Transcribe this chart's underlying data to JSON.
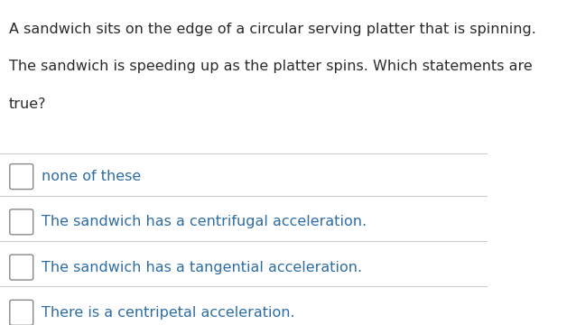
{
  "question_text_lines": [
    "A sandwich sits on the edge of a circular serving platter that is spinning.",
    "The sandwich is speeding up as the platter spins. Which statements are",
    "true?"
  ],
  "choices": [
    "none of these",
    "The sandwich has a centrifugal acceleration.",
    "The sandwich has a tangential acceleration.",
    "There is a centripetal acceleration."
  ],
  "question_color": "#2b2b2b",
  "choice_color": "#2e6da4",
  "background_color": "#ffffff",
  "divider_color": "#cccccc",
  "checkbox_color": "#888888",
  "question_fontsize": 11.5,
  "choice_fontsize": 11.5,
  "fig_width": 6.38,
  "fig_height": 3.6,
  "dpi": 100
}
